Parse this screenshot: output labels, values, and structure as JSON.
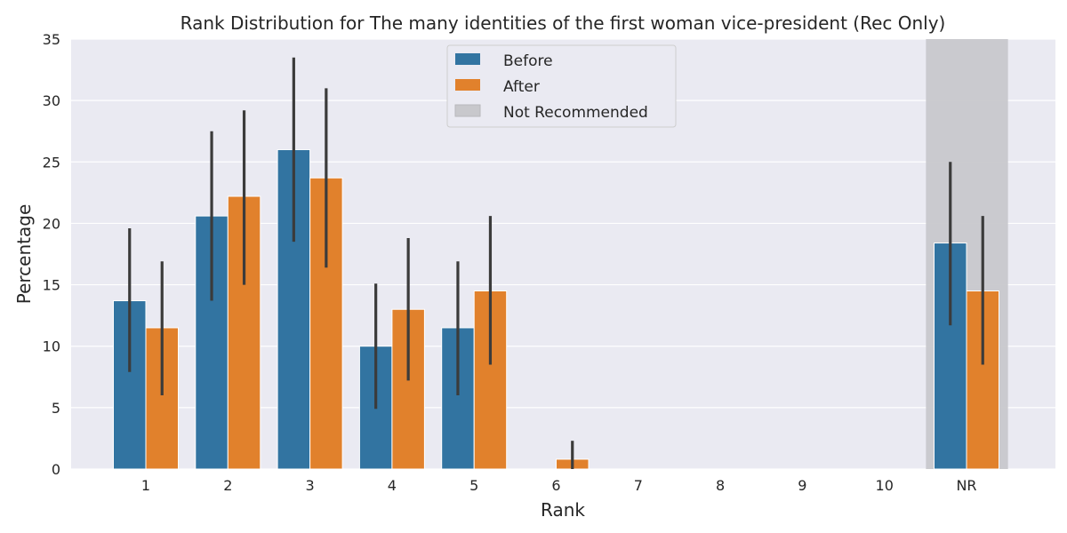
{
  "chart_data": {
    "type": "bar",
    "title": "Rank Distribution for The many identities of the first woman vice-president (Rec Only)",
    "xlabel": "Rank",
    "ylabel": "Percentage",
    "ylim": [
      0,
      35
    ],
    "yticks": [
      0,
      5,
      10,
      15,
      20,
      25,
      30,
      35
    ],
    "categories": [
      "1",
      "2",
      "3",
      "4",
      "5",
      "6",
      "7",
      "8",
      "9",
      "10",
      "NR"
    ],
    "series": [
      {
        "name": "Before",
        "color": "#3274a1",
        "values": [
          13.7,
          20.6,
          26.0,
          10.0,
          11.5,
          0,
          0,
          0,
          0,
          0,
          18.4
        ],
        "ci_low": [
          7.9,
          13.7,
          18.5,
          4.9,
          6.0,
          0,
          0,
          0,
          0,
          0,
          11.7
        ],
        "ci_high": [
          19.6,
          27.5,
          33.5,
          15.1,
          16.9,
          0,
          0,
          0,
          0,
          0,
          25.0
        ]
      },
      {
        "name": "After",
        "color": "#e1812c",
        "values": [
          11.5,
          22.2,
          23.7,
          13.0,
          14.5,
          0.8,
          0,
          0,
          0,
          0,
          14.5
        ],
        "ci_low": [
          6.0,
          15.0,
          16.4,
          7.2,
          8.5,
          0,
          0,
          0,
          0,
          0,
          8.5
        ],
        "ci_high": [
          16.9,
          29.2,
          31.0,
          18.8,
          20.6,
          2.3,
          0,
          0,
          0,
          0,
          20.6
        ]
      }
    ],
    "shaded_category": "NR",
    "shaded_label": "Not Recommended",
    "shaded_color": "#c8c8cc",
    "background_color": "#eaeaf2",
    "error_bar_color": "#3b3b3b",
    "grid": true,
    "legend_position": "top-center"
  }
}
